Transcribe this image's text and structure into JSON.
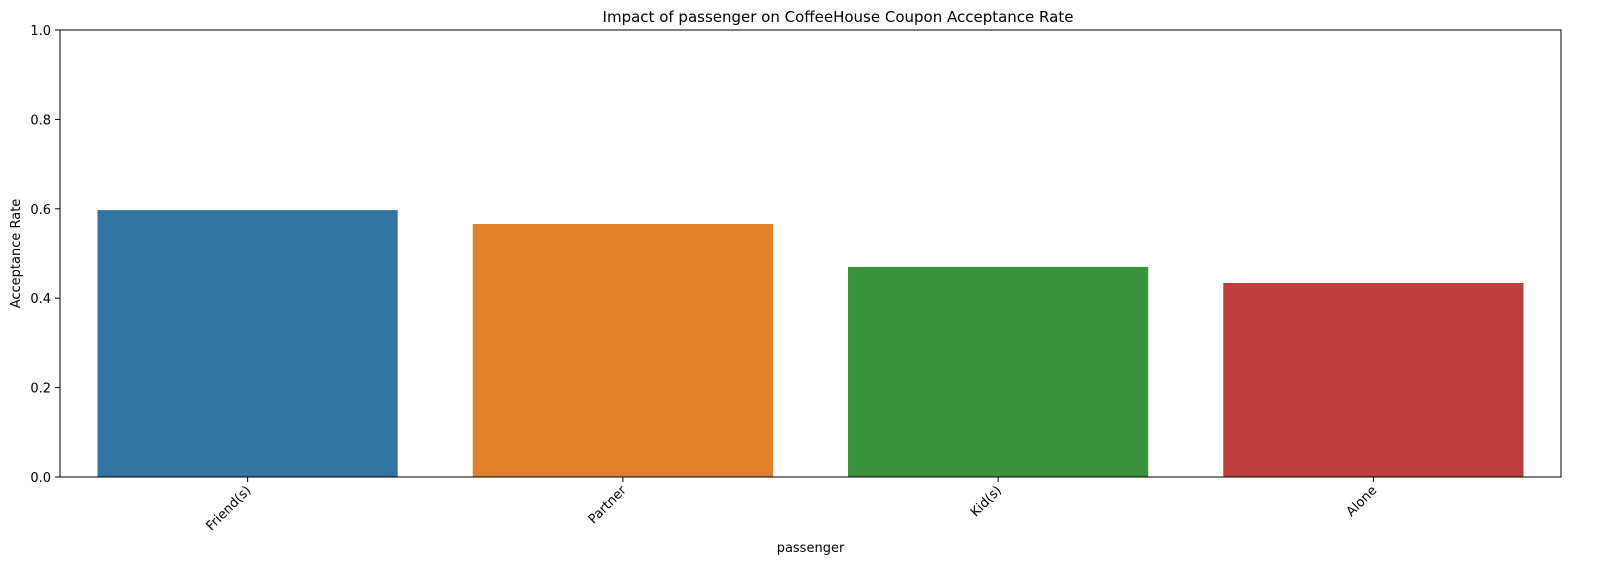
{
  "chart_data": {
    "type": "bar",
    "title": "Impact of passenger on CoffeeHouse Coupon Acceptance Rate",
    "xlabel": "passenger",
    "ylabel": "Acceptance Rate",
    "categories": [
      "Friend(s)",
      "Partner",
      "Kid(s)",
      "Alone"
    ],
    "values": [
      0.597,
      0.566,
      0.47,
      0.434
    ],
    "ylim": [
      0,
      1
    ],
    "yticks": [
      0.0,
      0.2,
      0.4,
      0.6,
      0.8,
      1.0
    ],
    "ytick_labels": [
      "0.0",
      "0.2",
      "0.4",
      "0.6",
      "0.8",
      "1.0"
    ],
    "xtick_rotation_deg": 45,
    "grid": false,
    "colors": [
      "#3274a1",
      "#e1812c",
      "#3a923a",
      "#c03d3e"
    ]
  }
}
